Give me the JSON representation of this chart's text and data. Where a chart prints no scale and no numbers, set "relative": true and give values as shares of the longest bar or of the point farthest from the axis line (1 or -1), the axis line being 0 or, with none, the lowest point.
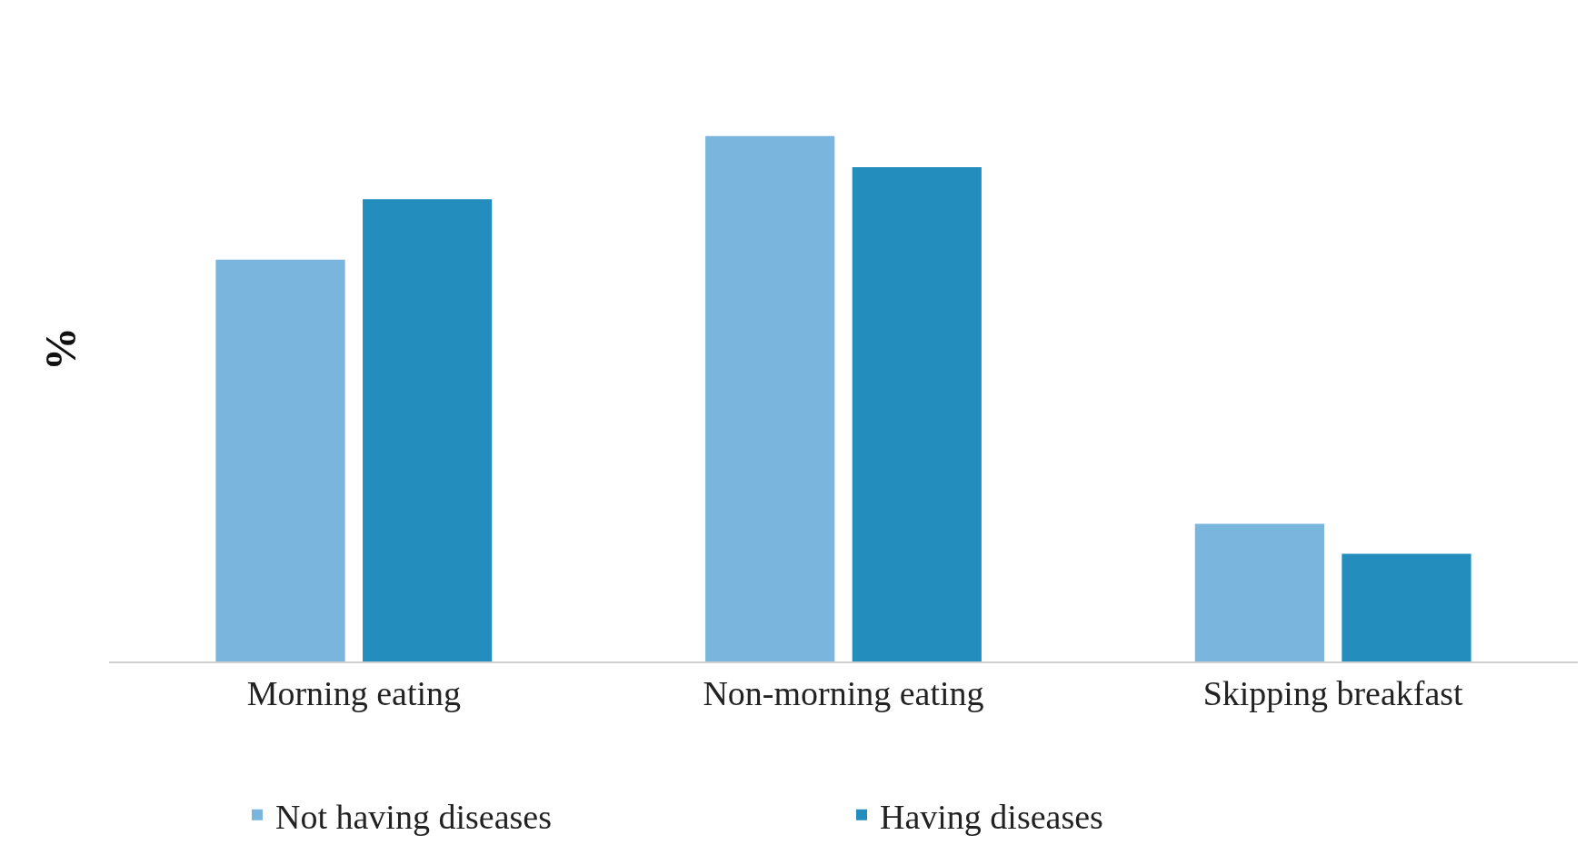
{
  "chart_data": {
    "type": "bar",
    "relative": true,
    "ylabel": "%",
    "categories": [
      "Morning eating",
      "Non-morning eating",
      "Skipping breakfast"
    ],
    "series": [
      {
        "name": "Not having diseases",
        "color": "#79b5dc",
        "values": [
          0.765,
          1,
          0.262
        ]
      },
      {
        "name": "Having diseases",
        "color": "#238ebd",
        "values": [
          0.88,
          0.941,
          0.205
        ]
      }
    ],
    "legend": "bottom",
    "grid": false
  }
}
